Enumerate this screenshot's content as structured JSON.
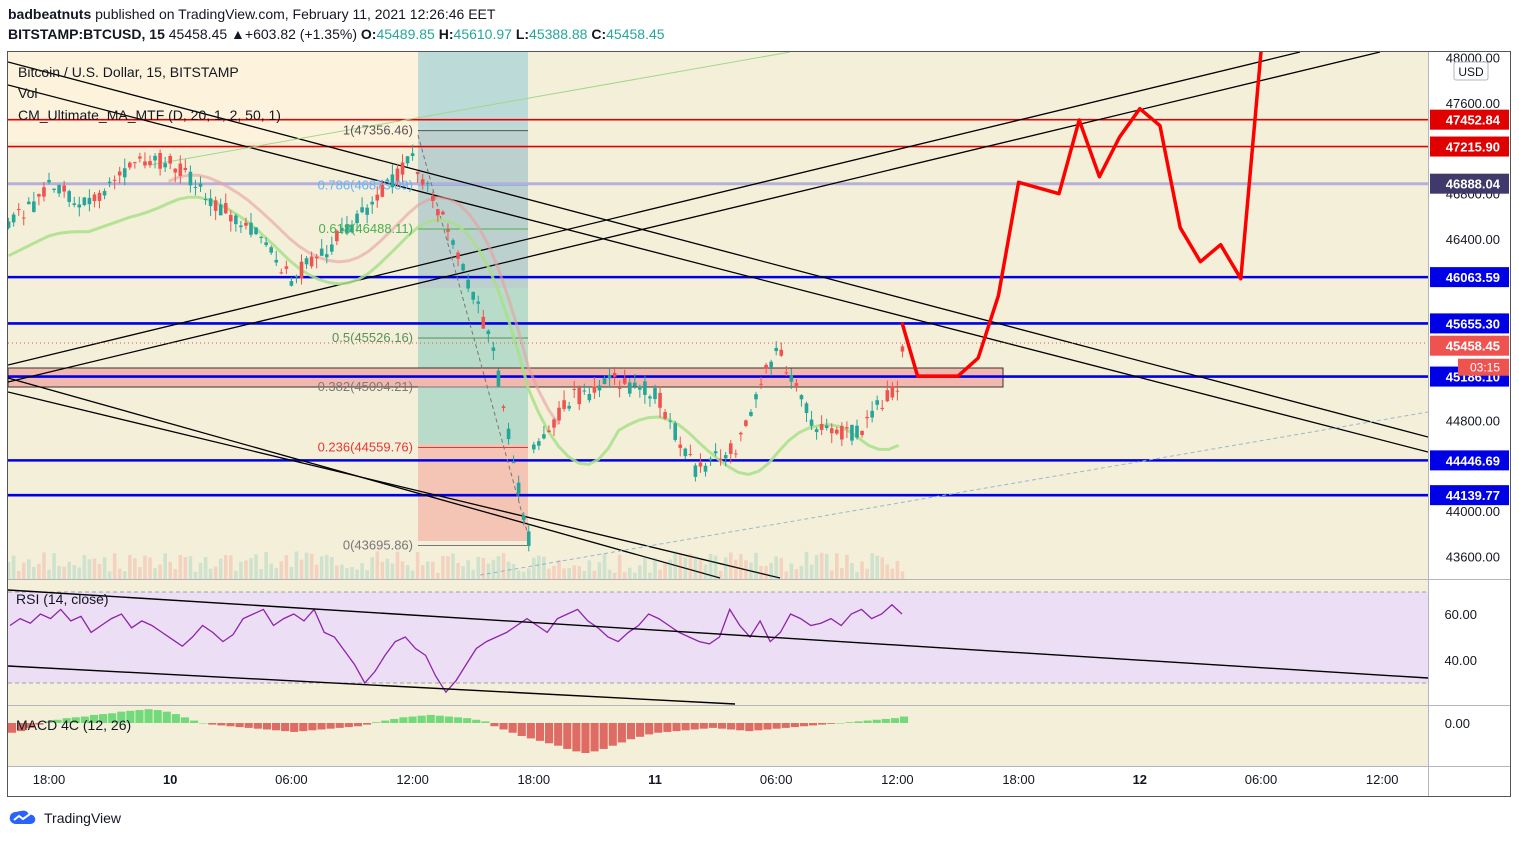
{
  "header": {
    "author": "badbeatnuts",
    "published_text": "published on TradingView.com, February 11, 2021 12:26:46 EET",
    "symbol": "BITSTAMP:BTCUSD, 15",
    "last": "45458.45",
    "change": "▲+603.82 (+1.35%)",
    "o_label": "O:",
    "o": "45489.85",
    "h_label": "H:",
    "h": "45610.97",
    "l_label": "L:",
    "l": "45388.88",
    "c_label": "C:",
    "c": "45458.45"
  },
  "legend": {
    "title": "Bitcoin / U.S. Dollar, 15, BITSTAMP",
    "vol": "Vol",
    "ma": "CM_Ultimate_MA_MTF (D, 20, 1, 2, 50, 1)"
  },
  "currency": "USD",
  "countdown": "03:15",
  "fib_levels": [
    {
      "label": "1(47356.46)",
      "price": 47356.46
    },
    {
      "label": "0.786(46873.09)",
      "price": 46873.09
    },
    {
      "label": "0.618(46488.11)",
      "price": 46488.11
    },
    {
      "label": "0.5(45526.16)",
      "price": 45526.16
    },
    {
      "label": "0.382(45094.21)",
      "price": 45094.21
    },
    {
      "label": "0.236(44559.76)",
      "price": 44559.76
    },
    {
      "label": "0(43695.86)",
      "price": 43695.86
    }
  ],
  "horizontal_levels": {
    "red": [
      "47452.84",
      "47215.90"
    ],
    "purple": [
      "46888.04"
    ],
    "blue": [
      "46063.59",
      "45655.30",
      "45186.10",
      "44446.69",
      "44139.77"
    ]
  },
  "current_price": "45458.45",
  "rsi_label": "RSI (14, close)",
  "macd_label": "MACD 4C (12, 26)",
  "footer": {
    "brand": "TradingView"
  },
  "chart_data": [
    {
      "type": "line",
      "title": "Bitcoin / U.S. Dollar, 15, BITSTAMP",
      "x_tick_labels": [
        "18:00",
        "10",
        "06:00",
        "12:00",
        "18:00",
        "11",
        "06:00",
        "12:00",
        "18:00",
        "12",
        "06:00",
        "12:00"
      ],
      "y_tick_labels": [
        "48000.00",
        "47600.00",
        "46800.00",
        "46400.00",
        "44800.00",
        "44000.00",
        "43600.00"
      ],
      "ylim": [
        43400,
        48050
      ],
      "series": [
        {
          "x": [
            "9 Feb 16:00",
            "9 Feb 18:00",
            "9 Feb 20:00",
            "9 Feb 22:00",
            "10 Feb 00:00",
            "10 Feb 02:00",
            "10 Feb 04:00",
            "10 Feb 06:00",
            "10 Feb 08:00",
            "10 Feb 10:00",
            "10 Feb 12:00",
            "10 Feb 14:00",
            "10 Feb 16:00",
            "10 Feb 17:45",
            "10 Feb 18:00",
            "10 Feb 20:00",
            "10 Feb 22:00",
            "11 Feb 00:00",
            "11 Feb 02:00",
            "11 Feb 04:00",
            "11 Feb 06:00",
            "11 Feb 08:00",
            "11 Feb 10:00",
            "11 Feb 12:00",
            "11 Feb 12:15"
          ],
          "values": [
            46500,
            46850,
            46700,
            47050,
            47100,
            46750,
            46500,
            46050,
            46350,
            46700,
            47100,
            46400,
            45400,
            43750,
            44600,
            45000,
            45150,
            45050,
            44350,
            44550,
            45450,
            44700,
            44700,
            45100,
            45458
          ]
        },
        {
          "x": [
            "11 Feb 12:15",
            "11 Feb 13:00",
            "11 Feb 15:00",
            "11 Feb 16:00",
            "11 Feb 17:00",
            "11 Feb 18:00",
            "11 Feb 20:00",
            "11 Feb 21:00",
            "11 Feb 22:00",
            "11 Feb 23:00",
            "12 Feb 00:00",
            "12 Feb 01:00",
            "12 Feb 02:00",
            "12 Feb 03:00",
            "12 Feb 04:00",
            "12 Feb 05:00",
            "12 Feb 06:00"
          ],
          "values": [
            45650,
            45190,
            45190,
            45350,
            45900,
            46900,
            46800,
            47450,
            46950,
            47300,
            47550,
            47400,
            46500,
            46200,
            46350,
            46050,
            48050
          ]
        }
      ]
    },
    {
      "type": "line",
      "title": "RSI (14, close)",
      "y_tick_labels": [
        "60.00",
        "40.00"
      ],
      "ylim": [
        20,
        70
      ],
      "series": [
        {
          "values": [
            55,
            58,
            56,
            60,
            58,
            62,
            57,
            59,
            52,
            55,
            58,
            60,
            54,
            57,
            55,
            52,
            49,
            46,
            50,
            55,
            52,
            48,
            51,
            58,
            60,
            62,
            55,
            58,
            60,
            57,
            62,
            52,
            50,
            44,
            38,
            30,
            35,
            42,
            48,
            50,
            45,
            42,
            33,
            26,
            31,
            38,
            45,
            48,
            50,
            52,
            55,
            58,
            55,
            52,
            58,
            60,
            62,
            57,
            54,
            50,
            48,
            52,
            55,
            60,
            58,
            55,
            52,
            50,
            48,
            47,
            50,
            62,
            55,
            50,
            57,
            48,
            52,
            60,
            58,
            55,
            56,
            58,
            55,
            60,
            62,
            58,
            60,
            64,
            60
          ]
        }
      ]
    },
    {
      "type": "bar",
      "title": "MACD 4C (12, 26)",
      "y_tick_labels": [
        "0.00"
      ],
      "series": [
        {
          "values": [
            -60,
            -50,
            -30,
            -10,
            10,
            20,
            30,
            35,
            40,
            50,
            55,
            60,
            70,
            75,
            80,
            85,
            80,
            70,
            55,
            35,
            15,
            0,
            -10,
            -15,
            -20,
            -25,
            -30,
            -35,
            -40,
            -45,
            -50,
            -55,
            -50,
            -45,
            -40,
            -35,
            -30,
            -25,
            -20,
            -10,
            5,
            15,
            25,
            35,
            40,
            45,
            50,
            45,
            40,
            35,
            30,
            20,
            10,
            -20,
            -40,
            -60,
            -80,
            -95,
            -110,
            -125,
            -140,
            -160,
            -175,
            -185,
            -175,
            -160,
            -140,
            -120,
            -100,
            -85,
            -70,
            -60,
            -55,
            -50,
            -45,
            -40,
            -35,
            -30,
            -35,
            -40,
            -45,
            -50,
            -45,
            -40,
            -35,
            -30,
            -25,
            -20,
            -15,
            -10,
            -5,
            0,
            5,
            10,
            15,
            20,
            25,
            30,
            40
          ]
        }
      ]
    }
  ]
}
